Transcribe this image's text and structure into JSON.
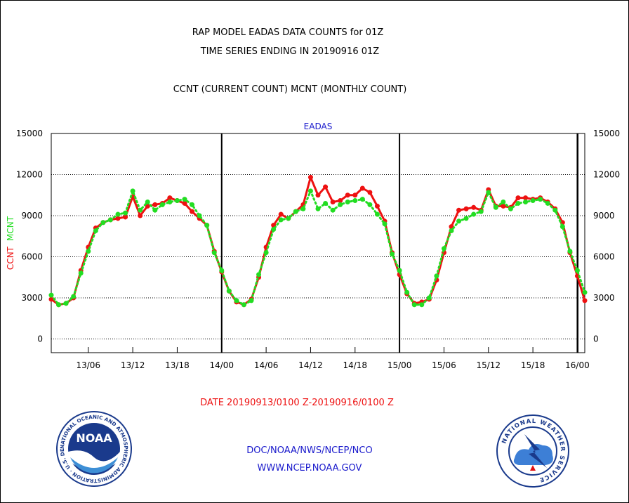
{
  "header": {
    "title_line1": "RAP MODEL EADAS DATA COUNTS for 01Z",
    "title_line2": "TIME SERIES ENDING IN 20190916 01Z",
    "subtitle": "CCNT (CURRENT COUNT) MCNT (MONTHLY COUNT)",
    "panel_label": "EADAS"
  },
  "footer": {
    "date_range": "DATE 20190913/0100 Z-20190916/0100 Z",
    "org_line": "DOC/NOAA/NWS/NCEP/NCO",
    "url_line": "WWW.NCEP.NOAA.GOV"
  },
  "logos": {
    "noaa_text": "NOAA",
    "noaa_ring_text": "NATIONAL OCEANIC AND ATMOSPHERIC ADMINISTRATION · U.S. DEPARTMENT OF COMMERCE ·",
    "nws_ring_text": "NATIONAL WEATHER SERVICE"
  },
  "chart_data": {
    "type": "line",
    "ylabel_ccnt": "CCNT",
    "ylabel_mcnt": "MCNT",
    "ylim": [
      -1000,
      15000
    ],
    "y_ticks": [
      "0",
      "3000",
      "6000",
      "9000",
      "12000",
      "15000"
    ],
    "x_ticks": [
      "13/06",
      "13/12",
      "13/18",
      "14/00",
      "14/06",
      "14/12",
      "14/18",
      "15/00",
      "15/06",
      "15/12",
      "15/18",
      "16/00"
    ],
    "x_range_hours": [
      0,
      72
    ],
    "grid": true,
    "colors": {
      "ccnt": "#ee1111",
      "mcnt": "#22dd22",
      "axis_text": "#000000",
      "panel_label": "#1a1acc",
      "date_text": "#ee1111",
      "footer_text": "#1a1acc"
    },
    "series": [
      {
        "name": "CCNT",
        "values": [
          2900,
          2500,
          2600,
          3000,
          5000,
          6700,
          8100,
          8500,
          8700,
          8800,
          8900,
          10400,
          9000,
          9700,
          9800,
          9900,
          10300,
          10100,
          9900,
          9300,
          8800,
          8300,
          6400,
          4900,
          3500,
          2700,
          2500,
          2900,
          4500,
          6700,
          8300,
          9100,
          8800,
          9300,
          9800,
          11800,
          10500,
          11100,
          10000,
          10100,
          10500,
          10500,
          11000,
          10700,
          9700,
          8600,
          6300,
          4700,
          3300,
          2600,
          2700,
          2900,
          4300,
          6300,
          8200,
          9400,
          9500,
          9600,
          9400,
          10900,
          9700,
          9700,
          9600,
          10300,
          10300,
          10200,
          10300,
          10000,
          9500,
          8500,
          6300,
          4600,
          2800
        ]
      },
      {
        "name": "MCNT",
        "values": [
          3200,
          2500,
          2600,
          3100,
          4800,
          6400,
          7900,
          8500,
          8700,
          9100,
          9200,
          10800,
          9400,
          10000,
          9400,
          9800,
          10000,
          10100,
          10200,
          9800,
          9000,
          8300,
          6300,
          5000,
          3500,
          2800,
          2500,
          2800,
          4700,
          6300,
          8000,
          8700,
          8800,
          9300,
          9500,
          10800,
          9500,
          9900,
          9400,
          9800,
          10000,
          10100,
          10200,
          9800,
          9100,
          8400,
          6200,
          5000,
          3400,
          2500,
          2500,
          3000,
          4600,
          6600,
          7900,
          8600,
          8800,
          9100,
          9300,
          10700,
          9600,
          10000,
          9500,
          9900,
          10000,
          10100,
          10200,
          9900,
          9400,
          8200,
          6400,
          5000,
          3400
        ]
      }
    ]
  }
}
